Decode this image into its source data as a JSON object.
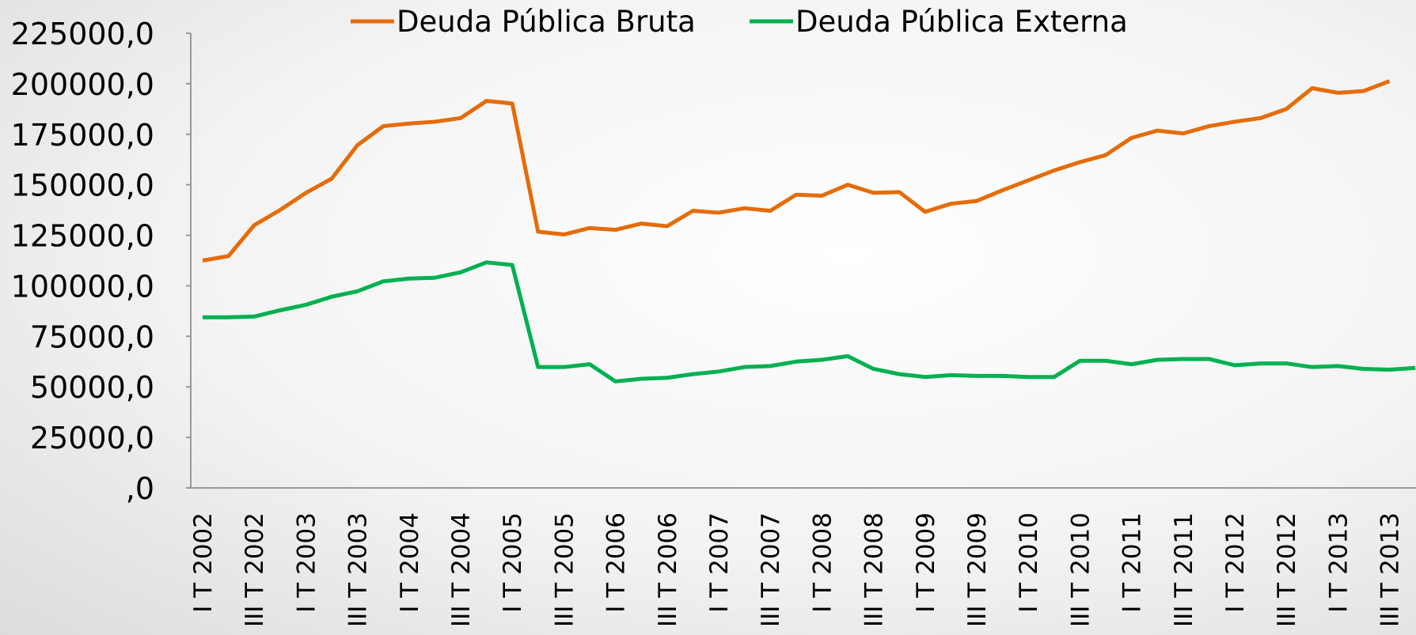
{
  "chart_data": {
    "type": "line",
    "categories": [
      "I T 2002",
      null,
      "III T 2002",
      null,
      "I T 2003",
      null,
      "III T 2003",
      null,
      "I T 2004",
      null,
      "III T 2004",
      null,
      "I T 2005",
      null,
      "III T 2005",
      null,
      "I T 2006",
      null,
      "III T 2006",
      null,
      "I T 2007",
      null,
      "III T 2007",
      null,
      "I T 2008",
      null,
      "III T 2008",
      null,
      "I T 2009",
      null,
      "III T 2009",
      null,
      "I T 2010",
      null,
      "III T 2010",
      null,
      "I T 2011",
      null,
      "III T 2011",
      null,
      "I T 2012",
      null,
      "III T 2012",
      null,
      "I T 2013",
      null,
      "III T 2013",
      null
    ],
    "series": [
      {
        "name": "Deuda Pública Bruta",
        "color": "#e46c0a",
        "values": [
          112500,
          114700,
          130000,
          137500,
          146000,
          153000,
          169600,
          179000,
          180300,
          181200,
          183000,
          191500,
          190200,
          126800,
          125400,
          128600,
          127700,
          130800,
          129500,
          137100,
          136200,
          138400,
          137100,
          145100,
          144600,
          150000,
          146000,
          146400,
          136600,
          140600,
          142000,
          147300,
          152200,
          157100,
          161200,
          164700,
          173200,
          176800,
          175400,
          179000,
          181200,
          183000,
          187500,
          197800,
          195500,
          196400,
          201300,
          null
        ]
      },
      {
        "name": "Deuda Pública Externa",
        "color": "#00b050",
        "values": [
          84400,
          84400,
          84800,
          87900,
          90600,
          94600,
          97300,
          102200,
          103600,
          104000,
          106700,
          111600,
          110300,
          59800,
          59800,
          61200,
          52700,
          54000,
          54500,
          56300,
          57600,
          59800,
          60300,
          62500,
          63400,
          65200,
          58900,
          56300,
          54900,
          55800,
          55400,
          55400,
          54900,
          54900,
          62900,
          62900,
          61200,
          63400,
          63800,
          63800,
          60700,
          61600,
          61600,
          59800,
          60300,
          58900,
          58500,
          59400
        ]
      }
    ],
    "ylim": [
      0,
      225000
    ],
    "yticks": [
      {
        "value": 0,
        "label": ",0"
      },
      {
        "value": 25000,
        "label": "25000,0"
      },
      {
        "value": 50000,
        "label": "50000,0"
      },
      {
        "value": 75000,
        "label": "75000,0"
      },
      {
        "value": 100000,
        "label": "100000,0"
      },
      {
        "value": 125000,
        "label": "125000,0"
      },
      {
        "value": 150000,
        "label": "150000,0"
      },
      {
        "value": 175000,
        "label": "175000,0"
      },
      {
        "value": 200000,
        "label": "200000,0"
      },
      {
        "value": 225000,
        "label": "225000,0"
      }
    ],
    "grid": false,
    "legend": "top"
  }
}
